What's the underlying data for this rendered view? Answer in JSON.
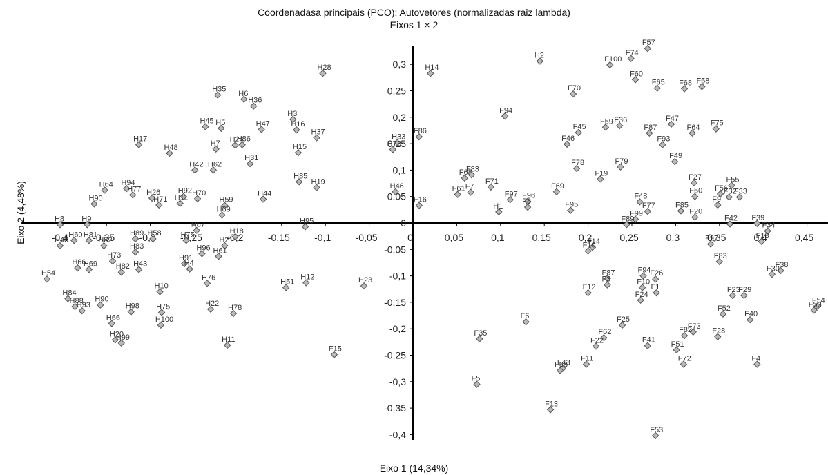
{
  "chart_data": {
    "type": "scatter",
    "title": "Coordenadasa principais (PCO): Autovetores (normalizadas raiz lambda)",
    "subtitle": "Eixos 1 × 2",
    "xlabel": "Eixo 1 (14,34%)",
    "ylabel": "Eixo 2 (4,48%)",
    "xlim": [
      -0.425,
      0.47
    ],
    "ylim": [
      -0.41,
      0.335
    ],
    "grid": false,
    "xticks": [
      {
        "v": -0.4,
        "t": "-0,4"
      },
      {
        "v": -0.35,
        "t": "-0,35"
      },
      {
        "v": -0.3,
        "t": "-0,3"
      },
      {
        "v": -0.25,
        "t": "-0,25"
      },
      {
        "v": -0.2,
        "t": "-0,2"
      },
      {
        "v": -0.15,
        "t": "-0,15"
      },
      {
        "v": -0.1,
        "t": "-0,1"
      },
      {
        "v": -0.05,
        "t": "-0,05"
      },
      {
        "v": 0,
        "t": "0"
      },
      {
        "v": 0.05,
        "t": "0,05"
      },
      {
        "v": 0.1,
        "t": "0,1"
      },
      {
        "v": 0.15,
        "t": "0,15"
      },
      {
        "v": 0.2,
        "t": "0,2"
      },
      {
        "v": 0.25,
        "t": "0,25"
      },
      {
        "v": 0.3,
        "t": "0,3"
      },
      {
        "v": 0.35,
        "t": "0,35"
      },
      {
        "v": 0.4,
        "t": "0,4"
      },
      {
        "v": 0.45,
        "t": "0,45"
      }
    ],
    "yticks": [
      {
        "v": 0.3,
        "t": "0,3"
      },
      {
        "v": 0.25,
        "t": "0,25"
      },
      {
        "v": 0.2,
        "t": "0,2"
      },
      {
        "v": 0.15,
        "t": "0,15"
      },
      {
        "v": 0.1,
        "t": "0,1"
      },
      {
        "v": 0.05,
        "t": "0,05"
      },
      {
        "v": 0,
        "t": "0"
      },
      {
        "v": -0.05,
        "t": "-0,05"
      },
      {
        "v": -0.1,
        "t": "-0,1"
      },
      {
        "v": -0.15,
        "t": "-0,15"
      },
      {
        "v": -0.2,
        "t": "-0,2"
      },
      {
        "v": -0.25,
        "t": "-0,25"
      },
      {
        "v": -0.3,
        "t": "-0,3"
      },
      {
        "v": -0.35,
        "t": "-0,35"
      },
      {
        "v": -0.4,
        "t": "-0,4"
      }
    ],
    "points": [
      {
        "label": "H28",
        "x": -0.103,
        "y": 0.283
      },
      {
        "label": "H14",
        "x": 0.02,
        "y": 0.283
      },
      {
        "label": "H2",
        "x": 0.145,
        "y": 0.306
      },
      {
        "label": "H35",
        "x": -0.223,
        "y": 0.242
      },
      {
        "label": "H6",
        "x": -0.193,
        "y": 0.234
      },
      {
        "label": "H36",
        "x": -0.182,
        "y": 0.221
      },
      {
        "label": "H45",
        "x": -0.237,
        "y": 0.182
      },
      {
        "label": "H5",
        "x": -0.219,
        "y": 0.179
      },
      {
        "label": "H47",
        "x": -0.173,
        "y": 0.177
      },
      {
        "label": "H3",
        "x": -0.137,
        "y": 0.196
      },
      {
        "label": "H16",
        "x": -0.133,
        "y": 0.176
      },
      {
        "label": "H37",
        "x": -0.11,
        "y": 0.161
      },
      {
        "label": "H17",
        "x": -0.313,
        "y": 0.148
      },
      {
        "label": "H48",
        "x": -0.278,
        "y": 0.132
      },
      {
        "label": "H7",
        "x": -0.225,
        "y": 0.14
      },
      {
        "label": "H24",
        "x": -0.203,
        "y": 0.147
      },
      {
        "label": "H86",
        "x": -0.195,
        "y": 0.148
      },
      {
        "label": "H15",
        "x": -0.131,
        "y": 0.133
      },
      {
        "label": "H31",
        "x": -0.186,
        "y": 0.112
      },
      {
        "label": "H42",
        "x": -0.249,
        "y": 0.1
      },
      {
        "label": "H62",
        "x": -0.228,
        "y": 0.1
      },
      {
        "label": "H85",
        "x": -0.13,
        "y": 0.078
      },
      {
        "label": "H19",
        "x": -0.11,
        "y": 0.067
      },
      {
        "label": "H44",
        "x": -0.171,
        "y": 0.045
      },
      {
        "label": "H33",
        "x": -0.018,
        "y": 0.152
      },
      {
        "label": "F86",
        "x": 0.007,
        "y": 0.163
      },
      {
        "label": "H73",
        "x": -0.023,
        "y": 0.139
      },
      {
        "label": "H64",
        "x": -0.352,
        "y": 0.062
      },
      {
        "label": "H94",
        "x": -0.327,
        "y": 0.065
      },
      {
        "label": "H77",
        "x": -0.32,
        "y": 0.053
      },
      {
        "label": "H26",
        "x": -0.298,
        "y": 0.047
      },
      {
        "label": "H92",
        "x": -0.262,
        "y": 0.05
      },
      {
        "label": "H70",
        "x": -0.246,
        "y": 0.046
      },
      {
        "label": "H11",
        "x": -0.266,
        "y": 0.037
      },
      {
        "label": "H71",
        "x": -0.29,
        "y": 0.034
      },
      {
        "label": "H90",
        "x": -0.364,
        "y": 0.036
      },
      {
        "label": "H59",
        "x": -0.215,
        "y": 0.033
      },
      {
        "label": "H69",
        "x": -0.218,
        "y": 0.015
      },
      {
        "label": "H46",
        "x": -0.02,
        "y": 0.059
      },
      {
        "label": "F16",
        "x": 0.007,
        "y": 0.033
      },
      {
        "label": "H8",
        "x": -0.403,
        "y": -0.003
      },
      {
        "label": "H9",
        "x": -0.372,
        "y": -0.003
      },
      {
        "label": "H95",
        "x": -0.123,
        "y": -0.007
      },
      {
        "label": "H40",
        "x": -0.403,
        "y": -0.043
      },
      {
        "label": "H60",
        "x": -0.387,
        "y": -0.033
      },
      {
        "label": "H81",
        "x": -0.37,
        "y": -0.033
      },
      {
        "label": "H89",
        "x": -0.317,
        "y": -0.03
      },
      {
        "label": "H83",
        "x": -0.317,
        "y": -0.055
      },
      {
        "label": "H58",
        "x": -0.297,
        "y": -0.03
      },
      {
        "label": "H87",
        "x": -0.247,
        "y": -0.014
      },
      {
        "label": "H75",
        "x": -0.259,
        "y": -0.033
      },
      {
        "label": "H18",
        "x": -0.203,
        "y": -0.026
      },
      {
        "label": "H21",
        "x": -0.215,
        "y": -0.043
      },
      {
        "label": "H96",
        "x": -0.241,
        "y": -0.058
      },
      {
        "label": "H61",
        "x": -0.222,
        "y": -0.063
      },
      {
        "label": "H82",
        "x": -0.353,
        "y": -0.043
      },
      {
        "label": "H73b",
        "x": -0.343,
        "y": -0.072
      },
      {
        "label": "H82b",
        "x": -0.333,
        "y": -0.093
      },
      {
        "label": "H43",
        "x": -0.313,
        "y": -0.088
      },
      {
        "label": "H91",
        "x": -0.261,
        "y": -0.077
      },
      {
        "label": "H4",
        "x": -0.255,
        "y": -0.087
      },
      {
        "label": "H66",
        "x": -0.383,
        "y": -0.085
      },
      {
        "label": "H69b",
        "x": -0.37,
        "y": -0.088
      },
      {
        "label": "H54",
        "x": -0.418,
        "y": -0.106
      },
      {
        "label": "H76",
        "x": -0.235,
        "y": -0.114
      },
      {
        "label": "H10",
        "x": -0.289,
        "y": -0.13
      },
      {
        "label": "H84",
        "x": -0.394,
        "y": -0.143
      },
      {
        "label": "H88",
        "x": -0.386,
        "y": -0.158
      },
      {
        "label": "H93",
        "x": -0.378,
        "y": -0.166
      },
      {
        "label": "H90b",
        "x": -0.357,
        "y": -0.155
      },
      {
        "label": "H98",
        "x": -0.322,
        "y": -0.168
      },
      {
        "label": "H75b",
        "x": -0.287,
        "y": -0.169
      },
      {
        "label": "H100",
        "x": -0.288,
        "y": -0.193
      },
      {
        "label": "H22",
        "x": -0.231,
        "y": -0.163
      },
      {
        "label": "H78",
        "x": -0.205,
        "y": -0.171
      },
      {
        "label": "H66b",
        "x": -0.344,
        "y": -0.19
      },
      {
        "label": "H20",
        "x": -0.34,
        "y": -0.221
      },
      {
        "label": "H99",
        "x": -0.333,
        "y": -0.227
      },
      {
        "label": "H11b",
        "x": -0.212,
        "y": -0.231
      },
      {
        "label": "H51",
        "x": -0.145,
        "y": -0.122
      },
      {
        "label": "H12",
        "x": -0.122,
        "y": -0.113
      },
      {
        "label": "H23",
        "x": -0.056,
        "y": -0.119
      },
      {
        "label": "F15",
        "x": -0.09,
        "y": -0.249
      },
      {
        "label": "F57",
        "x": 0.268,
        "y": 0.33
      },
      {
        "label": "F100",
        "x": 0.225,
        "y": 0.299
      },
      {
        "label": "F74",
        "x": 0.249,
        "y": 0.311
      },
      {
        "label": "F60",
        "x": 0.254,
        "y": 0.271
      },
      {
        "label": "F65",
        "x": 0.279,
        "y": 0.255
      },
      {
        "label": "F68",
        "x": 0.31,
        "y": 0.254
      },
      {
        "label": "F58",
        "x": 0.33,
        "y": 0.258
      },
      {
        "label": "F70",
        "x": 0.183,
        "y": 0.244
      },
      {
        "label": "F94",
        "x": 0.105,
        "y": 0.202
      },
      {
        "label": "F59",
        "x": 0.22,
        "y": 0.181
      },
      {
        "label": "F36",
        "x": 0.236,
        "y": 0.184
      },
      {
        "label": "F45",
        "x": 0.189,
        "y": 0.171
      },
      {
        "label": "F47",
        "x": 0.295,
        "y": 0.187
      },
      {
        "label": "F87",
        "x": 0.27,
        "y": 0.17
      },
      {
        "label": "F93",
        "x": 0.285,
        "y": 0.148
      },
      {
        "label": "F64",
        "x": 0.319,
        "y": 0.17
      },
      {
        "label": "F75",
        "x": 0.346,
        "y": 0.178
      },
      {
        "label": "F46",
        "x": 0.176,
        "y": 0.149
      },
      {
        "label": "F49",
        "x": 0.299,
        "y": 0.116
      },
      {
        "label": "F78",
        "x": 0.187,
        "y": 0.103
      },
      {
        "label": "F79",
        "x": 0.237,
        "y": 0.106
      },
      {
        "label": "F19",
        "x": 0.214,
        "y": 0.083
      },
      {
        "label": "F68b",
        "x": 0.059,
        "y": 0.085
      },
      {
        "label": "F83",
        "x": 0.067,
        "y": 0.091
      },
      {
        "label": "F71",
        "x": 0.089,
        "y": 0.068
      },
      {
        "label": "F61",
        "x": 0.051,
        "y": 0.054
      },
      {
        "label": "F7",
        "x": 0.066,
        "y": 0.058
      },
      {
        "label": "F97",
        "x": 0.111,
        "y": 0.044
      },
      {
        "label": "F96",
        "x": 0.131,
        "y": 0.041
      },
      {
        "label": "F69",
        "x": 0.164,
        "y": 0.059
      },
      {
        "label": "H1",
        "x": 0.098,
        "y": 0.021
      },
      {
        "label": "F8",
        "x": 0.131,
        "y": 0.03
      },
      {
        "label": "F95",
        "x": 0.18,
        "y": 0.024
      },
      {
        "label": "F48",
        "x": 0.259,
        "y": 0.04
      },
      {
        "label": "F77",
        "x": 0.268,
        "y": 0.022
      },
      {
        "label": "F27",
        "x": 0.321,
        "y": 0.076
      },
      {
        "label": "F50",
        "x": 0.322,
        "y": 0.05
      },
      {
        "label": "F55",
        "x": 0.364,
        "y": 0.071
      },
      {
        "label": "F56",
        "x": 0.351,
        "y": 0.055
      },
      {
        "label": "F32",
        "x": 0.361,
        "y": 0.049
      },
      {
        "label": "F33",
        "x": 0.373,
        "y": 0.049
      },
      {
        "label": "F9",
        "x": 0.348,
        "y": 0.034
      },
      {
        "label": "F85",
        "x": 0.306,
        "y": 0.023
      },
      {
        "label": "F20",
        "x": 0.322,
        "y": 0.011
      },
      {
        "label": "F99",
        "x": 0.254,
        "y": 0.007
      },
      {
        "label": "F89",
        "x": 0.244,
        "y": -0.003
      },
      {
        "label": "F42",
        "x": 0.362,
        "y": -0.002
      },
      {
        "label": "F39",
        "x": 0.393,
        "y": -0.001
      },
      {
        "label": "F34",
        "x": 0.405,
        "y": -0.015
      },
      {
        "label": "F97b",
        "x": 0.34,
        "y": -0.04
      },
      {
        "label": "F18",
        "x": 0.398,
        "y": -0.035
      },
      {
        "label": "F14",
        "x": 0.205,
        "y": -0.046
      },
      {
        "label": "F10",
        "x": 0.2,
        "y": -0.053
      },
      {
        "label": "F83b",
        "x": 0.35,
        "y": -0.073
      },
      {
        "label": "F38",
        "x": 0.42,
        "y": -0.09
      },
      {
        "label": "F30",
        "x": 0.41,
        "y": -0.097
      },
      {
        "label": "F87b",
        "x": 0.222,
        "y": -0.105
      },
      {
        "label": "F3",
        "x": 0.222,
        "y": -0.117
      },
      {
        "label": "F94b",
        "x": 0.263,
        "y": -0.1
      },
      {
        "label": "F26",
        "x": 0.277,
        "y": -0.106
      },
      {
        "label": "F10b",
        "x": 0.262,
        "y": -0.122
      },
      {
        "label": "F1",
        "x": 0.278,
        "y": -0.132
      },
      {
        "label": "F12",
        "x": 0.2,
        "y": -0.132
      },
      {
        "label": "F24",
        "x": 0.26,
        "y": -0.146
      },
      {
        "label": "F23",
        "x": 0.365,
        "y": -0.137
      },
      {
        "label": "F29",
        "x": 0.378,
        "y": -0.137
      },
      {
        "label": "F54",
        "x": 0.462,
        "y": -0.157
      },
      {
        "label": "F53b",
        "x": 0.458,
        "y": -0.165
      },
      {
        "label": "F52",
        "x": 0.354,
        "y": -0.172
      },
      {
        "label": "F40",
        "x": 0.385,
        "y": -0.183
      },
      {
        "label": "F25",
        "x": 0.239,
        "y": -0.193
      },
      {
        "label": "F6",
        "x": 0.129,
        "y": -0.187
      },
      {
        "label": "F73",
        "x": 0.32,
        "y": -0.206
      },
      {
        "label": "F82",
        "x": 0.31,
        "y": -0.213
      },
      {
        "label": "F28",
        "x": 0.348,
        "y": -0.215
      },
      {
        "label": "F62",
        "x": 0.218,
        "y": -0.217
      },
      {
        "label": "F22",
        "x": 0.209,
        "y": -0.233
      },
      {
        "label": "F41",
        "x": 0.268,
        "y": -0.232
      },
      {
        "label": "F51",
        "x": 0.301,
        "y": -0.24
      },
      {
        "label": "F35",
        "x": 0.076,
        "y": -0.219
      },
      {
        "label": "F72",
        "x": 0.309,
        "y": -0.267
      },
      {
        "label": "F4",
        "x": 0.393,
        "y": -0.267
      },
      {
        "label": "F11",
        "x": 0.198,
        "y": -0.267
      },
      {
        "label": "F43",
        "x": 0.171,
        "y": -0.275
      },
      {
        "label": "F63",
        "x": 0.168,
        "y": -0.279
      },
      {
        "label": "F5",
        "x": 0.073,
        "y": -0.305
      },
      {
        "label": "F13",
        "x": 0.157,
        "y": -0.353
      },
      {
        "label": "F53",
        "x": 0.277,
        "y": -0.402
      }
    ]
  }
}
